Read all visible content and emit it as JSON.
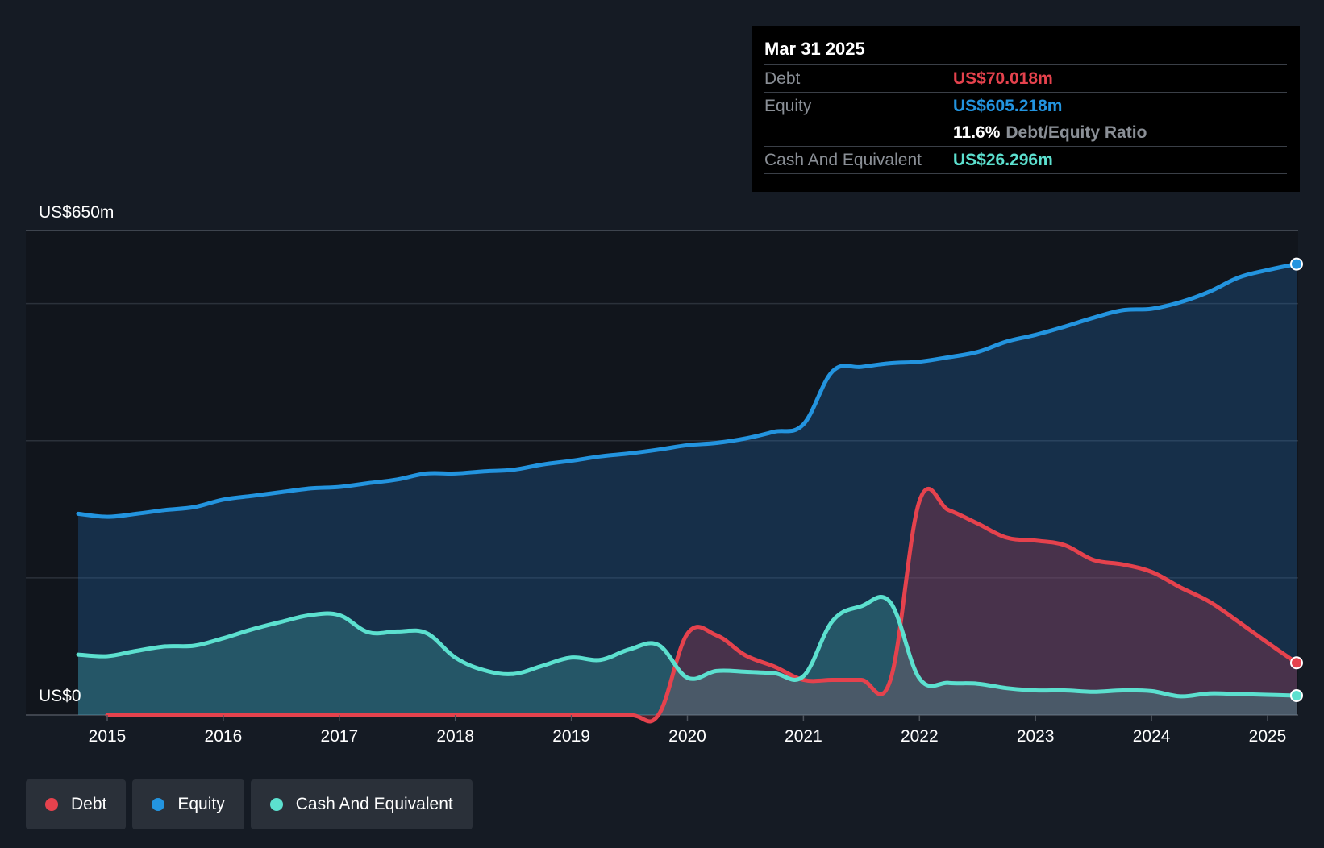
{
  "tooltip": {
    "date": "Mar 31 2025",
    "debt_label": "Debt",
    "debt_value": "US$70.018m",
    "equity_label": "Equity",
    "equity_value": "US$605.218m",
    "ratio_pct": "11.6%",
    "ratio_label": "Debt/Equity Ratio",
    "cash_label": "Cash And Equivalent",
    "cash_value": "US$26.296m"
  },
  "legend": [
    {
      "label": "Debt",
      "color": "#e5424d"
    },
    {
      "label": "Equity",
      "color": "#2394df"
    },
    {
      "label": "Cash And Equivalent",
      "color": "#5ce0cf"
    }
  ],
  "chart_data": {
    "type": "area",
    "ylabel_top": "US$650m",
    "ylabel_bottom": "US$0",
    "ylim": [
      0,
      650
    ],
    "xlim": [
      2014.31,
      2025.25
    ],
    "x_ticks": [
      "2015",
      "2016",
      "2017",
      "2018",
      "2019",
      "2020",
      "2021",
      "2022",
      "2023",
      "2024",
      "2025"
    ],
    "colors": {
      "debt": "#e5424d",
      "equity": "#2394df",
      "cash": "#5ce0cf"
    },
    "series": [
      {
        "name": "Equity",
        "x": [
          2014.75,
          2015.0,
          2015.25,
          2015.5,
          2015.75,
          2016.0,
          2016.25,
          2016.5,
          2016.75,
          2017.0,
          2017.25,
          2017.5,
          2017.75,
          2018.0,
          2018.25,
          2018.5,
          2018.75,
          2019.0,
          2019.25,
          2019.5,
          2019.75,
          2020.0,
          2020.25,
          2020.5,
          2020.75,
          2021.0,
          2021.25,
          2021.5,
          2021.75,
          2022.0,
          2022.25,
          2022.5,
          2022.75,
          2023.0,
          2023.25,
          2023.5,
          2023.75,
          2024.0,
          2024.25,
          2024.5,
          2024.75,
          2025.0,
          2025.25
        ],
        "values": [
          270,
          266,
          270,
          275,
          279,
          289,
          294,
          299,
          304,
          306,
          311,
          316,
          324,
          324,
          327,
          329,
          336,
          341,
          347,
          351,
          356,
          362,
          365,
          371,
          380,
          390,
          461,
          467,
          472,
          474,
          480,
          487,
          501,
          510,
          521,
          533,
          543,
          545,
          554,
          568,
          587,
          597,
          605
        ]
      },
      {
        "name": "Debt",
        "x": [
          2015.0,
          2015.5,
          2016.0,
          2016.5,
          2017.0,
          2017.5,
          2018.0,
          2018.5,
          2019.0,
          2019.5,
          2019.75,
          2020.0,
          2020.25,
          2020.5,
          2020.75,
          2021.0,
          2021.25,
          2021.5,
          2021.75,
          2022.0,
          2022.25,
          2022.5,
          2022.75,
          2023.0,
          2023.25,
          2023.5,
          2023.75,
          2024.0,
          2024.25,
          2024.5,
          2024.75,
          2025.0,
          2025.25
        ],
        "values": [
          0,
          0,
          0,
          0,
          0,
          0,
          0,
          0,
          0,
          0,
          0,
          109,
          107,
          80,
          65,
          47,
          47,
          47,
          47,
          287,
          275,
          257,
          238,
          234,
          228,
          208,
          202,
          192,
          171,
          152,
          125,
          97,
          70
        ]
      },
      {
        "name": "Cash And Equivalent",
        "x": [
          2014.75,
          2015.0,
          2015.25,
          2015.5,
          2015.75,
          2016.0,
          2016.25,
          2016.5,
          2016.75,
          2017.0,
          2017.25,
          2017.5,
          2017.75,
          2018.0,
          2018.25,
          2018.5,
          2018.75,
          2019.0,
          2019.25,
          2019.5,
          2019.75,
          2020.0,
          2020.25,
          2020.5,
          2020.75,
          2021.0,
          2021.25,
          2021.5,
          2021.75,
          2022.0,
          2022.25,
          2022.5,
          2022.75,
          2023.0,
          2023.25,
          2023.5,
          2023.75,
          2024.0,
          2024.25,
          2024.5,
          2024.75,
          2025.0,
          2025.25
        ],
        "values": [
          81,
          79,
          86,
          92,
          93,
          103,
          115,
          125,
          134,
          134,
          111,
          112,
          110,
          77,
          60,
          55,
          66,
          77,
          74,
          88,
          94,
          50,
          59,
          58,
          56,
          52,
          126,
          146,
          151,
          49,
          43,
          42,
          36,
          33,
          33,
          31,
          33,
          32,
          25,
          29,
          28,
          27,
          26
        ]
      }
    ]
  }
}
